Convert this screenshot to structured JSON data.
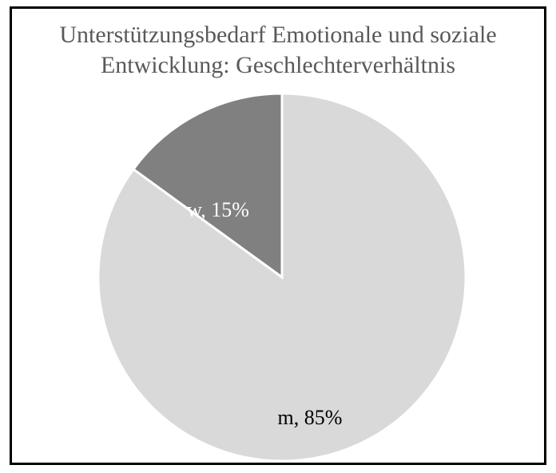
{
  "chart_data": {
    "type": "pie",
    "title_lines": [
      "Unterstützungsbedarf Emotionale und soziale",
      "Entwicklung: Geschlechterverhältnis"
    ],
    "title": "Unterstützungsbedarf Emotionale und soziale Entwicklung: Geschlechterverhältnis",
    "categories": [
      "w",
      "m"
    ],
    "values": [
      15,
      85
    ],
    "labels": [
      "w, 15%",
      "m, 85%"
    ],
    "colors": [
      "#808080",
      "#d9d9d9"
    ],
    "label_colors": [
      "#ffffff",
      "#000000"
    ],
    "start": "12 o'clock, counter-clockwise for first slice",
    "legend": "none"
  }
}
